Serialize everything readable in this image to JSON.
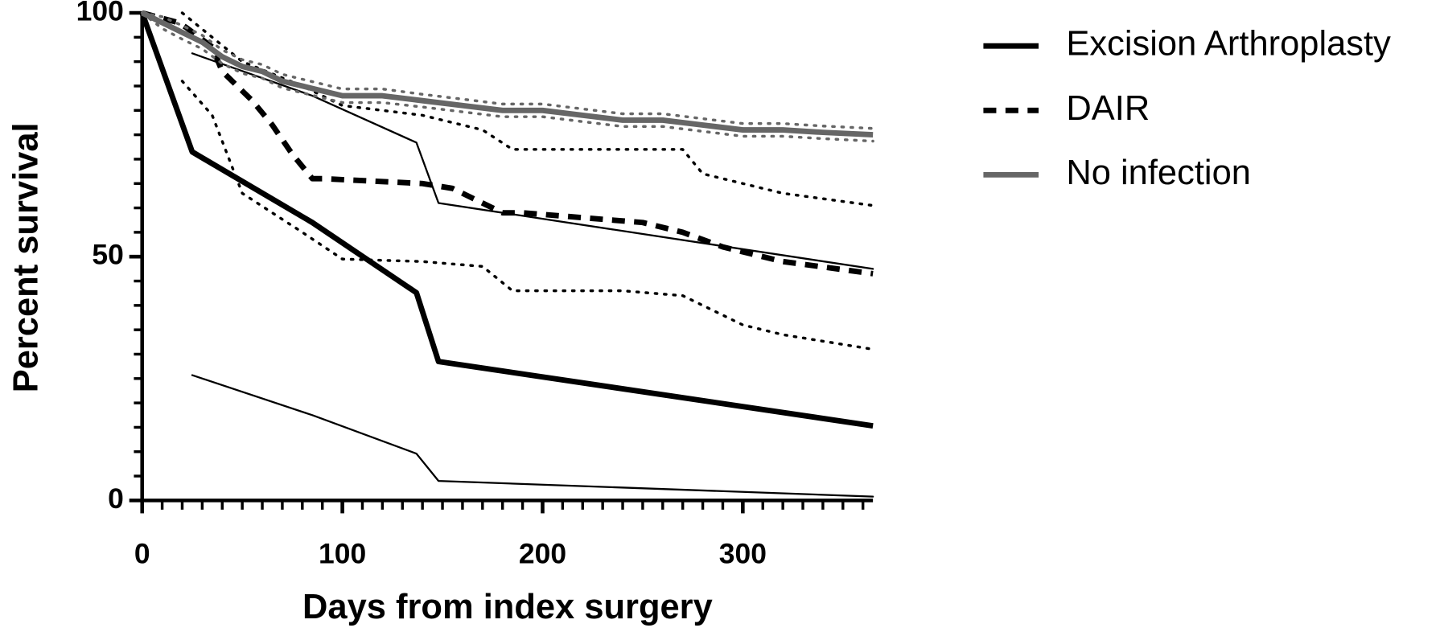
{
  "chart_data": {
    "type": "line",
    "x_label": "Days from index surgery",
    "y_label": "Percent survival",
    "xlim": [
      0,
      365
    ],
    "ylim": [
      0,
      100
    ],
    "xticks": [
      0,
      100,
      200,
      300
    ],
    "yticks": [
      0,
      50,
      100
    ],
    "xminorticks": [
      10,
      20,
      30,
      40,
      50,
      60,
      70,
      80,
      90,
      110,
      120,
      130,
      140,
      150,
      160,
      170,
      180,
      190,
      210,
      220,
      230,
      240,
      250,
      260,
      270,
      280,
      290,
      310,
      320,
      330,
      340,
      350,
      360
    ],
    "yminorticks": [
      5,
      10,
      15,
      20,
      25,
      30,
      35,
      40,
      45,
      55,
      60,
      65,
      70,
      75,
      80,
      85,
      90,
      95
    ],
    "legend": "right",
    "series": [
      {
        "name": "Excision Arthroplasty",
        "color": "#000000",
        "style": "solid",
        "width": 6,
        "x": [
          0,
          25,
          85,
          137,
          148,
          365
        ],
        "values": [
          100,
          71.5,
          57,
          42.6,
          28.5,
          15.3
        ],
        "ci": {
          "style": "solid",
          "x": [
            25,
            85,
            137,
            148,
            365
          ],
          "upper": [
            91.7,
            83,
            73.4,
            61,
            47.5
          ],
          "lower": [
            25.7,
            17.5,
            9.6,
            4,
            0.8
          ]
        }
      },
      {
        "name": "DAIR",
        "color": "#000000",
        "style": "dashed",
        "width": 6,
        "x": [
          0,
          18,
          22,
          35,
          40,
          55,
          65,
          75,
          85,
          90,
          140,
          155,
          165,
          180,
          190,
          250,
          270,
          290,
          320,
          365
        ],
        "values": [
          100,
          98,
          97,
          93,
          88,
          82,
          77,
          71,
          66,
          66,
          65,
          64,
          62,
          59,
          59,
          57,
          55,
          52,
          49,
          46.5
        ],
        "ci": {
          "style": "dotted",
          "x": [
            20,
            35,
            50,
            80,
            100,
            140,
            170,
            185,
            240,
            270,
            280,
            300,
            320,
            365
          ],
          "upper": [
            100,
            95,
            90,
            85,
            81,
            79,
            76,
            72,
            72,
            72,
            67,
            65,
            63,
            60.5
          ],
          "lower": [
            86,
            79,
            63,
            55,
            49.5,
            49,
            48,
            43,
            43,
            42,
            40,
            36,
            34,
            31
          ]
        }
      },
      {
        "name": "No infection",
        "color": "#666666",
        "style": "solid",
        "width": 6,
        "x": [
          0,
          10,
          20,
          30,
          40,
          50,
          60,
          70,
          80,
          90,
          100,
          120,
          140,
          160,
          180,
          200,
          220,
          240,
          260,
          280,
          300,
          320,
          340,
          365
        ],
        "values": [
          100,
          98,
          96,
          94,
          91,
          89,
          88,
          86,
          85,
          84,
          83,
          83,
          82,
          81,
          80,
          80,
          79,
          78,
          78,
          77,
          76,
          76,
          75.5,
          75
        ],
        "ci": {
          "style": "dotted",
          "x": [
            0,
            10,
            20,
            30,
            40,
            50,
            60,
            70,
            80,
            90,
            100,
            120,
            140,
            160,
            180,
            200,
            220,
            240,
            260,
            280,
            300,
            320,
            340,
            365
          ],
          "upper": [
            100,
            99.2,
            97.4,
            95.4,
            92.4,
            90.4,
            89.4,
            87.4,
            86.4,
            85.4,
            84.4,
            84.4,
            83.3,
            82.3,
            81.3,
            81.3,
            80.3,
            79.3,
            79.3,
            78.3,
            77.3,
            77.3,
            76.8,
            76.3
          ],
          "lower": [
            100,
            96.8,
            94.6,
            92.6,
            89.6,
            87.6,
            86.6,
            84.6,
            83.6,
            82.6,
            81.6,
            81.6,
            80.7,
            79.7,
            78.7,
            78.7,
            77.7,
            76.7,
            76.7,
            75.7,
            74.7,
            74.7,
            74.2,
            73.7
          ]
        }
      }
    ]
  }
}
